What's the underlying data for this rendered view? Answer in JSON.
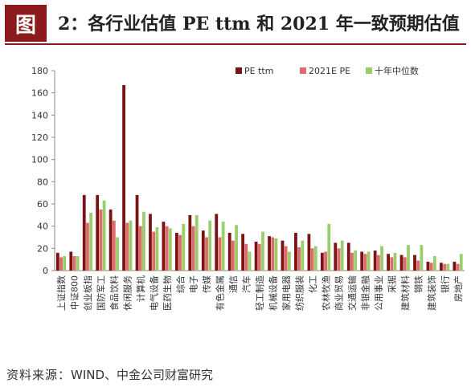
{
  "figure": {
    "badge": "图",
    "title": "2：各行业估值 PE ttm 和 2021 年一致预期估值"
  },
  "source": {
    "label": "资料来源：",
    "text": "WIND、中金公司财富研究"
  },
  "colors": {
    "accent": "#8b1a1a",
    "pe_ttm": "#7a1313",
    "pe_2021e": "#e06b6b",
    "median_10y": "#9acd6b"
  },
  "chart_data": {
    "type": "bar",
    "title": "",
    "xlabel": "",
    "ylabel": "",
    "ylim": [
      0,
      180
    ],
    "yticks": [
      0,
      20,
      40,
      60,
      80,
      100,
      120,
      140,
      160,
      180
    ],
    "grid": false,
    "legend_position": "top-right",
    "categories": [
      "上证指数",
      "中证800",
      "创业板指",
      "国防军工",
      "食品饮料",
      "休闲服务",
      "计算机",
      "电气设备",
      "医药生物",
      "综合",
      "电子",
      "传媒",
      "有色金属",
      "通信",
      "汽车",
      "轻工制造",
      "机械设备",
      "家用电器",
      "纺织服装",
      "化工",
      "农林牧渔",
      "商业贸易",
      "交通运输",
      "非银金融",
      "公用事业",
      "采掘",
      "建筑材料",
      "钢铁",
      "建筑装饰",
      "银行",
      "房地产"
    ],
    "series": [
      {
        "name": "PE ttm",
        "color": "#7a1313",
        "values": [
          16,
          17,
          68,
          68,
          55,
          167,
          68,
          51,
          44,
          34,
          50,
          36,
          51,
          34,
          33,
          26,
          31,
          27,
          34,
          33,
          16,
          25,
          25,
          17,
          18,
          15,
          14,
          14,
          8,
          7,
          8
        ]
      },
      {
        "name": "2021E PE",
        "color": "#e06b6b",
        "values": [
          12,
          13,
          43,
          55,
          45,
          43,
          40,
          35,
          40,
          32,
          40,
          30,
          30,
          27,
          24,
          24,
          30,
          22,
          21,
          20,
          17,
          20,
          16,
          15,
          14,
          12,
          12,
          9,
          7,
          6,
          6
        ]
      },
      {
        "name": "十年中位数",
        "color": "#9acd6b",
        "values": [
          13,
          13,
          52,
          63,
          30,
          45,
          53,
          39,
          38,
          42,
          50,
          45,
          44,
          41,
          17,
          35,
          29,
          17,
          27,
          22,
          42,
          27,
          18,
          17,
          22,
          16,
          23,
          23,
          13,
          6,
          15
        ]
      }
    ]
  }
}
